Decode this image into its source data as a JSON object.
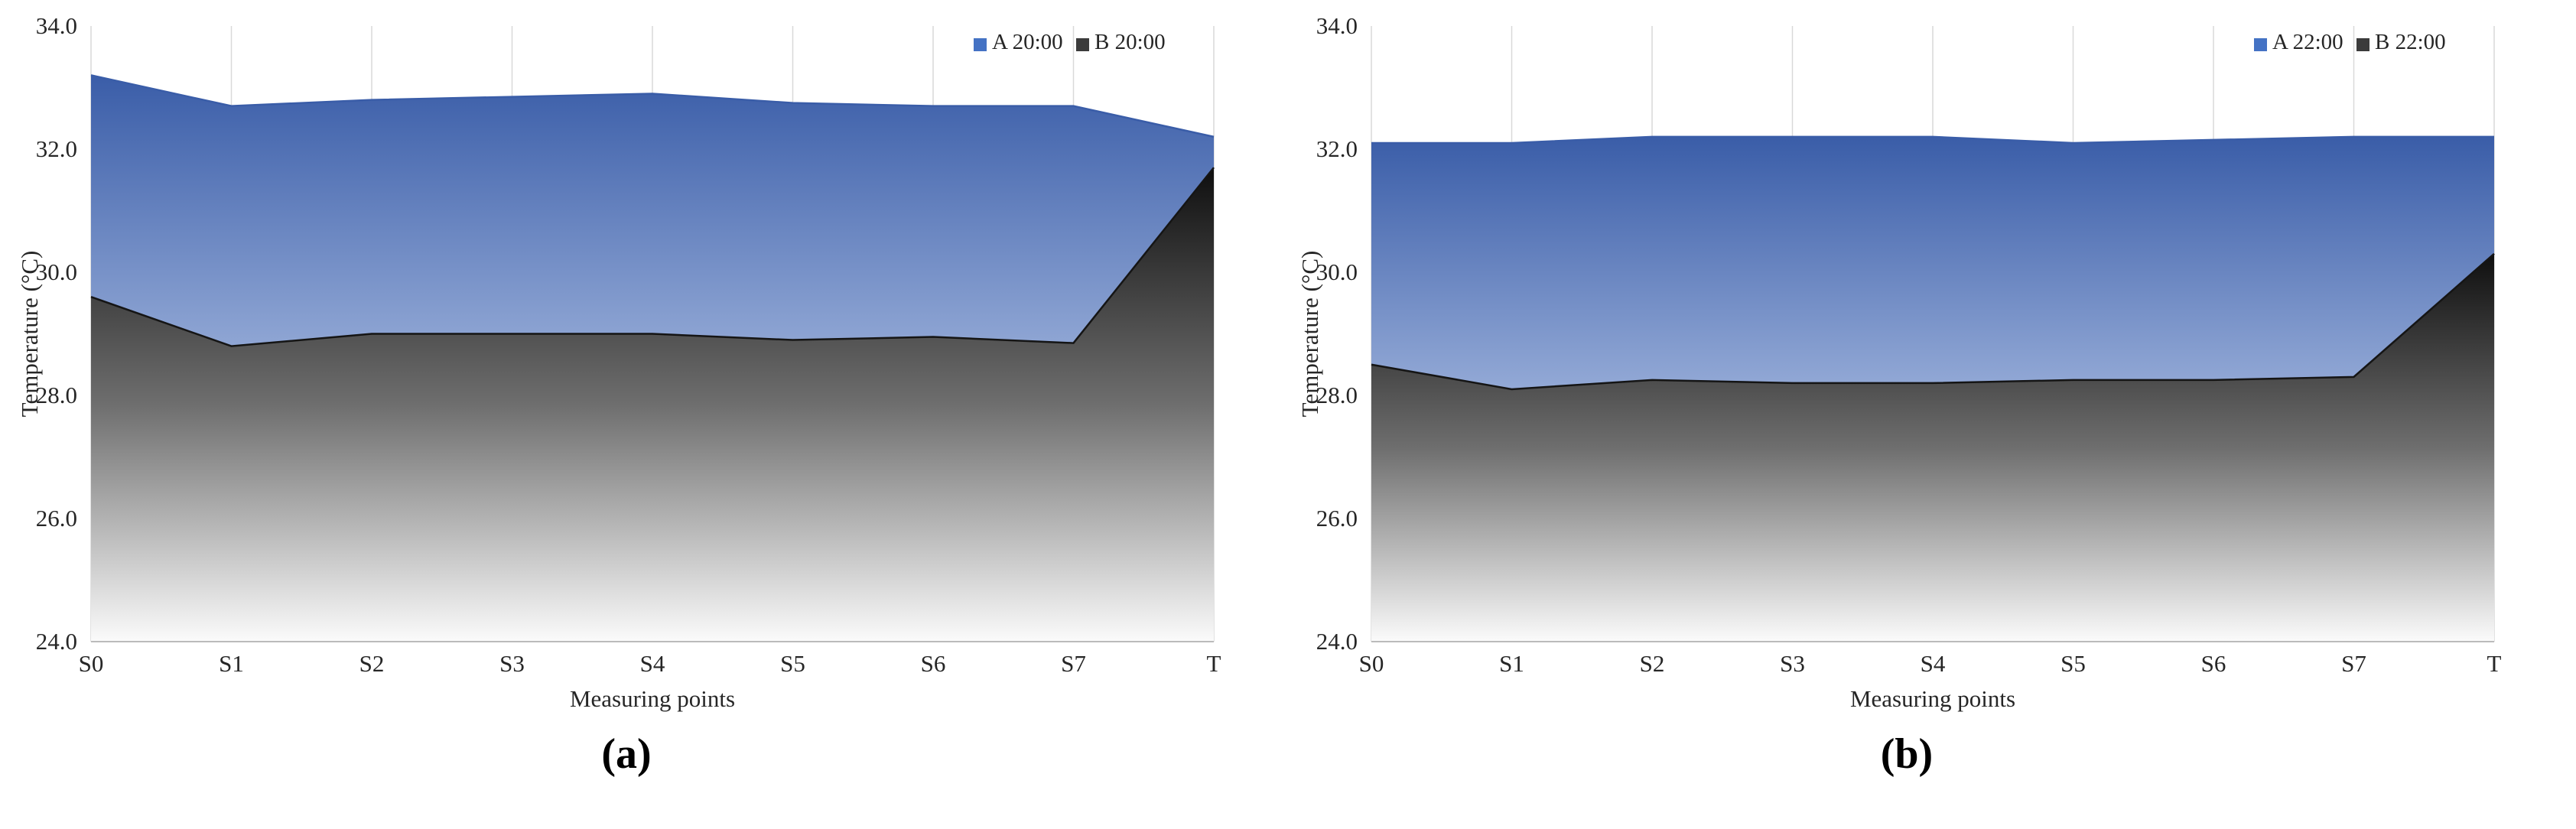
{
  "page": {
    "background": "#ffffff"
  },
  "chart_data": [
    {
      "type": "area",
      "caption": "(a)",
      "title": "",
      "xlabel": "Measuring points",
      "ylabel": "Temperature (°C)",
      "categories": [
        "S0",
        "S1",
        "S2",
        "S3",
        "S4",
        "S5",
        "S6",
        "S7",
        "T"
      ],
      "y_ticks": [
        34.0,
        32.0,
        30.0,
        28.0,
        26.0,
        24.0
      ],
      "y_tick_labels": [
        "34.0",
        "32.0",
        "30.0",
        "28.0",
        "26.0",
        "24.0"
      ],
      "ylim": [
        24,
        34
      ],
      "grid": "vertical",
      "gridline_color": "#d9d9d9",
      "axis_color": "#a6a6a6",
      "legend_position": "top-right",
      "series": [
        {
          "name": "A 20:00",
          "legend_color": "#4472C4",
          "stroke": "#3a5da8",
          "gradient": [
            "#3a5da8",
            "#93a9d6",
            "#f4f6fb"
          ],
          "values": [
            33.2,
            32.7,
            32.8,
            32.85,
            32.9,
            32.75,
            32.7,
            32.7,
            32.2
          ]
        },
        {
          "name": "B 20:00",
          "legend_color": "#3b3b3b",
          "stroke": "#151515",
          "gradient": [
            "#0f0f0f",
            "#6e6e6e",
            "#fbfbfb"
          ],
          "values": [
            29.6,
            28.8,
            29.0,
            29.0,
            29.0,
            28.9,
            28.95,
            28.85,
            31.7
          ]
        }
      ]
    },
    {
      "type": "area",
      "caption": "(b)",
      "title": "",
      "xlabel": "Measuring points",
      "ylabel": "Temperature (°C)",
      "categories": [
        "S0",
        "S1",
        "S2",
        "S3",
        "S4",
        "S5",
        "S6",
        "S7",
        "T"
      ],
      "y_ticks": [
        34.0,
        32.0,
        30.0,
        28.0,
        26.0,
        24.0
      ],
      "y_tick_labels": [
        "34.0",
        "32.0",
        "30.0",
        "28.0",
        "26.0",
        "24.0"
      ],
      "ylim": [
        24,
        34
      ],
      "grid": "vertical",
      "gridline_color": "#d9d9d9",
      "axis_color": "#a6a6a6",
      "legend_position": "top-right",
      "series": [
        {
          "name": "A 22:00",
          "legend_color": "#4472C4",
          "stroke": "#3a5da8",
          "gradient": [
            "#3a5da8",
            "#93a9d6",
            "#f4f6fb"
          ],
          "values": [
            32.1,
            32.1,
            32.2,
            32.2,
            32.2,
            32.1,
            32.15,
            32.2,
            32.2
          ]
        },
        {
          "name": "B 22:00",
          "legend_color": "#3b3b3b",
          "stroke": "#151515",
          "gradient": [
            "#0f0f0f",
            "#6e6e6e",
            "#fbfbfb"
          ],
          "values": [
            28.5,
            28.1,
            28.25,
            28.2,
            28.2,
            28.25,
            28.25,
            28.3,
            30.3
          ]
        }
      ]
    }
  ]
}
